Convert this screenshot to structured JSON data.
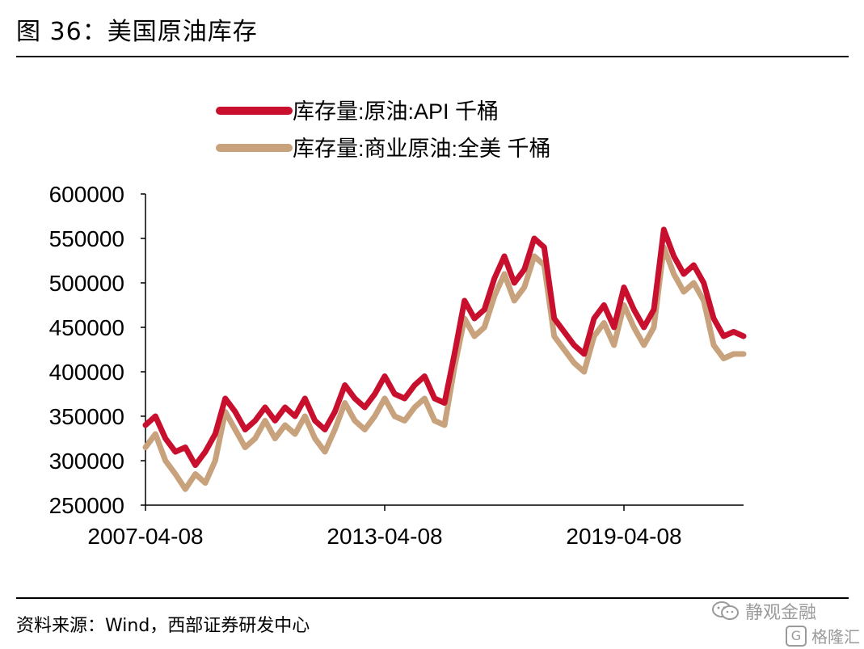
{
  "figure": {
    "title": "图 36：美国原油库存",
    "source": "资料来源：Wind，西部证券研发中心"
  },
  "watermark": {
    "brand": "静观金融",
    "sub": "格隆汇",
    "sub_mark": "G"
  },
  "colors": {
    "api": "#c8102e",
    "commercial": "#c8a27c",
    "axis": "#000000"
  },
  "chart_data": {
    "type": "line",
    "title": "",
    "xlabel": "",
    "ylabel": "",
    "x_tick_labels": [
      "2007-04-08",
      "2013-04-08",
      "2019-04-08"
    ],
    "y_ticks": [
      250000,
      300000,
      350000,
      400000,
      450000,
      500000,
      550000,
      600000
    ],
    "ylim": [
      250000,
      600000
    ],
    "xlim": [
      "2007-04",
      "2022-04"
    ],
    "grid": false,
    "legend_position": "top",
    "series": [
      {
        "name": "库存量:原油:API 千桶",
        "color": "#c8102e",
        "x": [
          "2007-04",
          "2007-07",
          "2007-10",
          "2008-01",
          "2008-04",
          "2008-07",
          "2008-10",
          "2009-01",
          "2009-04",
          "2009-07",
          "2009-10",
          "2010-01",
          "2010-04",
          "2010-07",
          "2010-10",
          "2011-01",
          "2011-04",
          "2011-07",
          "2011-10",
          "2012-01",
          "2012-04",
          "2012-07",
          "2012-10",
          "2013-01",
          "2013-04",
          "2013-07",
          "2013-10",
          "2014-01",
          "2014-04",
          "2014-07",
          "2014-10",
          "2015-01",
          "2015-04",
          "2015-07",
          "2015-10",
          "2016-01",
          "2016-04",
          "2016-07",
          "2016-10",
          "2017-01",
          "2017-04",
          "2017-07",
          "2017-10",
          "2018-01",
          "2018-04",
          "2018-07",
          "2018-10",
          "2019-01",
          "2019-04",
          "2019-07",
          "2019-10",
          "2020-01",
          "2020-04",
          "2020-07",
          "2020-10",
          "2021-01",
          "2021-04",
          "2021-07",
          "2021-10",
          "2022-01",
          "2022-04"
        ],
        "values": [
          340000,
          350000,
          325000,
          310000,
          315000,
          295000,
          310000,
          330000,
          370000,
          355000,
          335000,
          345000,
          360000,
          345000,
          360000,
          350000,
          370000,
          345000,
          335000,
          355000,
          385000,
          370000,
          360000,
          375000,
          395000,
          375000,
          370000,
          385000,
          395000,
          370000,
          365000,
          420000,
          480000,
          460000,
          470000,
          505000,
          530000,
          500000,
          515000,
          550000,
          540000,
          460000,
          445000,
          430000,
          420000,
          460000,
          475000,
          450000,
          495000,
          470000,
          450000,
          470000,
          560000,
          530000,
          510000,
          520000,
          500000,
          460000,
          440000,
          445000,
          440000
        ]
      },
      {
        "name": "库存量:商业原油:全美 千桶",
        "color": "#c8a27c",
        "x": [
          "2007-04",
          "2007-07",
          "2007-10",
          "2008-01",
          "2008-04",
          "2008-07",
          "2008-10",
          "2009-01",
          "2009-04",
          "2009-07",
          "2009-10",
          "2010-01",
          "2010-04",
          "2010-07",
          "2010-10",
          "2011-01",
          "2011-04",
          "2011-07",
          "2011-10",
          "2012-01",
          "2012-04",
          "2012-07",
          "2012-10",
          "2013-01",
          "2013-04",
          "2013-07",
          "2013-10",
          "2014-01",
          "2014-04",
          "2014-07",
          "2014-10",
          "2015-01",
          "2015-04",
          "2015-07",
          "2015-10",
          "2016-01",
          "2016-04",
          "2016-07",
          "2016-10",
          "2017-01",
          "2017-04",
          "2017-07",
          "2017-10",
          "2018-01",
          "2018-04",
          "2018-07",
          "2018-10",
          "2019-01",
          "2019-04",
          "2019-07",
          "2019-10",
          "2020-01",
          "2020-04",
          "2020-07",
          "2020-10",
          "2021-01",
          "2021-04",
          "2021-07",
          "2021-10",
          "2022-01",
          "2022-04"
        ],
        "values": [
          315000,
          330000,
          300000,
          285000,
          268000,
          285000,
          275000,
          300000,
          355000,
          335000,
          315000,
          325000,
          345000,
          325000,
          340000,
          330000,
          350000,
          325000,
          310000,
          335000,
          365000,
          345000,
          335000,
          350000,
          370000,
          350000,
          345000,
          360000,
          370000,
          345000,
          340000,
          405000,
          460000,
          440000,
          450000,
          485000,
          510000,
          480000,
          495000,
          530000,
          520000,
          440000,
          425000,
          410000,
          400000,
          440000,
          455000,
          430000,
          475000,
          450000,
          430000,
          450000,
          540000,
          510000,
          490000,
          500000,
          480000,
          430000,
          415000,
          420000,
          420000
        ]
      }
    ]
  }
}
